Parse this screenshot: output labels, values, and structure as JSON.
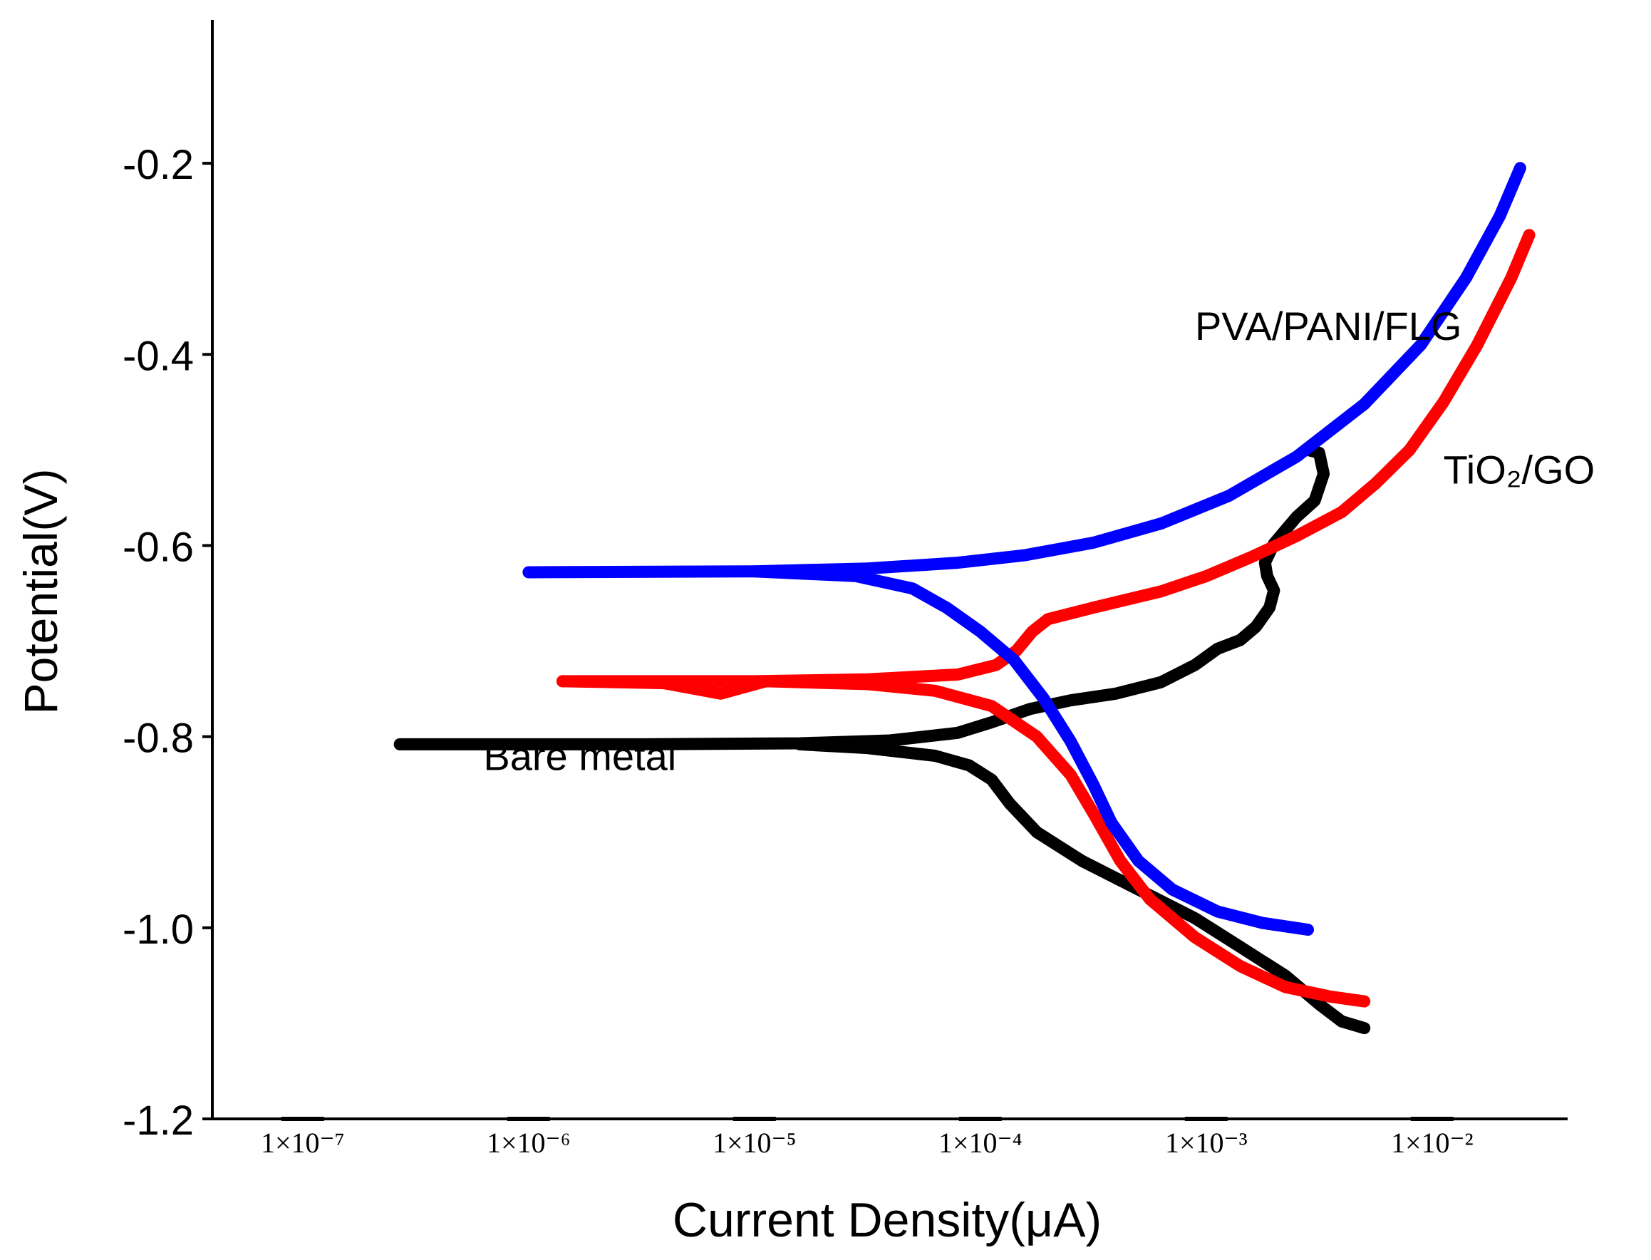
{
  "chart_data": {
    "type": "line",
    "title": "",
    "xlabel": "Current Density(μA)",
    "ylabel": "Potential(V)",
    "x_scale": "log10",
    "xlim": [
      -7.4,
      -1.4
    ],
    "ylim": [
      -1.2,
      -0.05
    ],
    "x_ticks": [
      {
        "exp": -7,
        "label": "1×10⁻⁷"
      },
      {
        "exp": -6,
        "label": "1×10⁻⁶"
      },
      {
        "exp": -5,
        "label": "1×10⁻⁵"
      },
      {
        "exp": -4,
        "label": "1×10⁻⁴"
      },
      {
        "exp": -3,
        "label": "1×10⁻³"
      },
      {
        "exp": -2,
        "label": "1×10⁻²"
      }
    ],
    "y_ticks": [
      {
        "value": -0.2,
        "label": "-0.2"
      },
      {
        "value": -0.4,
        "label": "-0.4"
      },
      {
        "value": -0.6,
        "label": "-0.6"
      },
      {
        "value": -0.8,
        "label": "-0.8"
      },
      {
        "value": -1.0,
        "label": "-1.0"
      },
      {
        "value": -1.2,
        "label": "-1.2"
      }
    ],
    "series": [
      {
        "name": "Bare metal",
        "color": "#000000",
        "label_text": "Bare metal",
        "label_at": [
          -6.2,
          -0.835
        ],
        "points": [
          [
            -6.57,
            -0.808
          ],
          [
            -5.5,
            -0.808
          ],
          [
            -4.8,
            -0.807
          ],
          [
            -4.4,
            -0.804
          ],
          [
            -4.1,
            -0.796
          ],
          [
            -3.95,
            -0.785
          ],
          [
            -3.78,
            -0.771
          ],
          [
            -3.6,
            -0.762
          ],
          [
            -3.4,
            -0.755
          ],
          [
            -3.2,
            -0.743
          ],
          [
            -3.05,
            -0.725
          ],
          [
            -2.95,
            -0.708
          ],
          [
            -2.85,
            -0.699
          ],
          [
            -2.78,
            -0.685
          ],
          [
            -2.72,
            -0.665
          ],
          [
            -2.7,
            -0.647
          ],
          [
            -2.73,
            -0.632
          ],
          [
            -2.74,
            -0.618
          ],
          [
            -2.7,
            -0.598
          ],
          [
            -2.6,
            -0.57
          ],
          [
            -2.52,
            -0.553
          ],
          [
            -2.48,
            -0.525
          ],
          [
            -2.5,
            -0.503
          ],
          [
            -2.55,
            -0.5
          ]
        ],
        "cathodic": [
          [
            -4.8,
            -0.808
          ],
          [
            -4.5,
            -0.812
          ],
          [
            -4.2,
            -0.82
          ],
          [
            -4.05,
            -0.83
          ],
          [
            -3.95,
            -0.845
          ],
          [
            -3.87,
            -0.87
          ],
          [
            -3.75,
            -0.9
          ],
          [
            -3.55,
            -0.93
          ],
          [
            -3.3,
            -0.96
          ],
          [
            -3.05,
            -0.99
          ],
          [
            -2.85,
            -1.02
          ],
          [
            -2.65,
            -1.05
          ],
          [
            -2.5,
            -1.08
          ],
          [
            -2.4,
            -1.098
          ],
          [
            -2.3,
            -1.105
          ]
        ]
      },
      {
        "name": "TiO2/GO",
        "color": "#ff0000",
        "label_text": "TiO₂/GO",
        "label_at": [
          -1.95,
          -0.535
        ],
        "points": [
          [
            -5.85,
            -0.742
          ],
          [
            -5.0,
            -0.742
          ],
          [
            -4.5,
            -0.74
          ],
          [
            -4.1,
            -0.735
          ],
          [
            -3.93,
            -0.725
          ],
          [
            -3.84,
            -0.71
          ],
          [
            -3.77,
            -0.69
          ],
          [
            -3.7,
            -0.677
          ],
          [
            -3.5,
            -0.665
          ],
          [
            -3.2,
            -0.648
          ],
          [
            -3.0,
            -0.632
          ],
          [
            -2.8,
            -0.612
          ],
          [
            -2.6,
            -0.59
          ],
          [
            -2.4,
            -0.565
          ],
          [
            -2.25,
            -0.535
          ],
          [
            -2.1,
            -0.5
          ],
          [
            -1.95,
            -0.45
          ],
          [
            -1.8,
            -0.39
          ],
          [
            -1.65,
            -0.32
          ],
          [
            -1.57,
            -0.275
          ]
        ],
        "cathodic": [
          [
            -5.85,
            -0.742
          ],
          [
            -5.4,
            -0.744
          ],
          [
            -5.15,
            -0.755
          ],
          [
            -4.95,
            -0.742
          ],
          [
            -4.5,
            -0.745
          ],
          [
            -4.2,
            -0.752
          ],
          [
            -3.95,
            -0.768
          ],
          [
            -3.75,
            -0.8
          ],
          [
            -3.6,
            -0.84
          ],
          [
            -3.5,
            -0.88
          ],
          [
            -3.38,
            -0.93
          ],
          [
            -3.25,
            -0.97
          ],
          [
            -3.05,
            -1.01
          ],
          [
            -2.85,
            -1.04
          ],
          [
            -2.65,
            -1.062
          ],
          [
            -2.45,
            -1.072
          ],
          [
            -2.3,
            -1.077
          ]
        ]
      },
      {
        "name": "PVA/PANI/FLG",
        "color": "#0000ff",
        "label_text": "PVA/PANI/FLG",
        "label_at": [
          -3.05,
          -0.385
        ],
        "points": [
          [
            -6.0,
            -0.628
          ],
          [
            -5.0,
            -0.627
          ],
          [
            -4.5,
            -0.624
          ],
          [
            -4.1,
            -0.618
          ],
          [
            -3.8,
            -0.61
          ],
          [
            -3.5,
            -0.597
          ],
          [
            -3.2,
            -0.577
          ],
          [
            -2.9,
            -0.548
          ],
          [
            -2.6,
            -0.507
          ],
          [
            -2.3,
            -0.452
          ],
          [
            -2.05,
            -0.39
          ],
          [
            -1.85,
            -0.32
          ],
          [
            -1.7,
            -0.255
          ],
          [
            -1.61,
            -0.205
          ]
        ],
        "cathodic": [
          [
            -5.0,
            -0.627
          ],
          [
            -4.55,
            -0.632
          ],
          [
            -4.3,
            -0.645
          ],
          [
            -4.15,
            -0.665
          ],
          [
            -4.0,
            -0.69
          ],
          [
            -3.85,
            -0.72
          ],
          [
            -3.72,
            -0.76
          ],
          [
            -3.6,
            -0.805
          ],
          [
            -3.5,
            -0.85
          ],
          [
            -3.42,
            -0.89
          ],
          [
            -3.3,
            -0.93
          ],
          [
            -3.15,
            -0.96
          ],
          [
            -2.95,
            -0.983
          ],
          [
            -2.75,
            -0.995
          ],
          [
            -2.55,
            -1.002
          ]
        ]
      }
    ]
  }
}
